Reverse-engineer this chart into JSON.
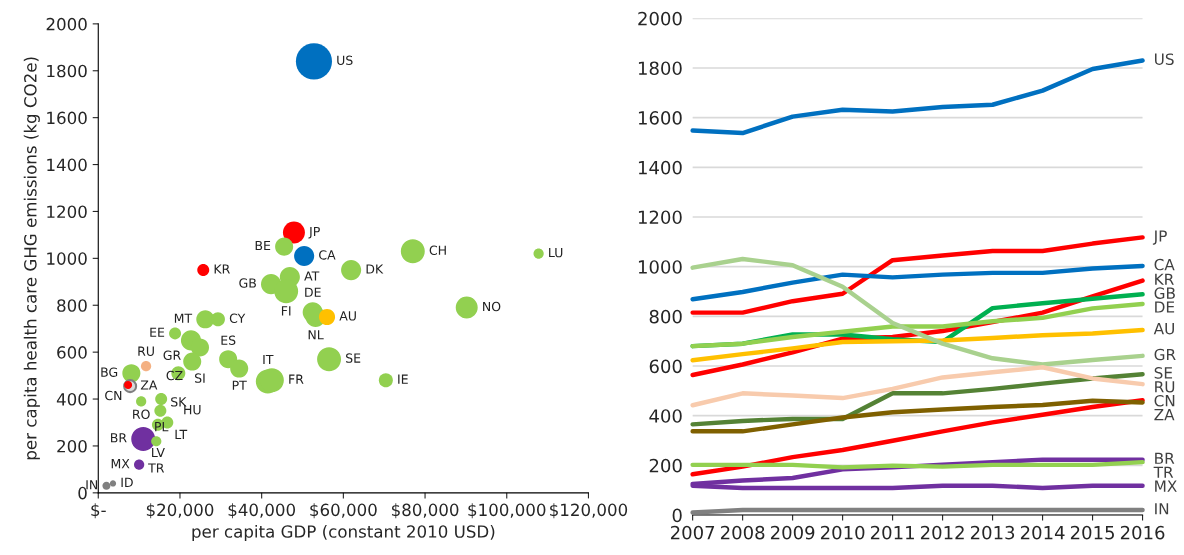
{
  "chart_data": [
    {
      "type": "bubble",
      "xlabel": "per capita GDP (constant 2010 USD)",
      "ylabel": "per capita health care GHG emissions (kg CO2e)",
      "x": [
        52800,
        47900,
        50400,
        45500,
        77000,
        107800,
        25700,
        61900,
        42300,
        46900,
        46000,
        52500,
        53200,
        56000,
        90200,
        26200,
        29300,
        18800,
        22700,
        24900,
        23000,
        31800,
        34500,
        41500,
        42500,
        56500,
        70400,
        8100,
        11700,
        19600,
        7800,
        7300,
        10500,
        15400,
        15200,
        16900,
        14600,
        11000,
        14200,
        10000,
        2000,
        3600
      ],
      "values": [
        1840,
        1110,
        1010,
        1050,
        1030,
        1020,
        950,
        950,
        890,
        920,
        860,
        770,
        750,
        750,
        790,
        740,
        740,
        680,
        650,
        620,
        560,
        570,
        530,
        475,
        480,
        570,
        480,
        510,
        540,
        510,
        455,
        460,
        390,
        400,
        350,
        300,
        290,
        230,
        220,
        120,
        30,
        40
      ],
      "sizes": [
        1,
        0.37,
        0.31,
        0.25,
        0.44,
        0.08,
        0.11,
        0.31,
        0.31,
        0.31,
        0.44,
        0.31,
        0.31,
        0.2,
        0.37,
        0.25,
        0.15,
        0.11,
        0.31,
        0.25,
        0.25,
        0.25,
        0.25,
        0.44,
        0.44,
        0.44,
        0.15,
        0.25,
        0.08,
        0.15,
        0.11,
        0.05,
        0.08,
        0.11,
        0.11,
        0.11,
        0.11,
        0.44,
        0.08,
        0.08,
        0.05,
        0.03
      ],
      "colors": [
        "#0070c0",
        "#ff0000",
        "#0070c0",
        "#92d050",
        "#92d050",
        "#92d050",
        "#ff0000",
        "#92d050",
        "#92d050",
        "#92d050",
        "#92d050",
        "#92d050",
        "#92d050",
        "#ffc000",
        "#92d050",
        "#92d050",
        "#92d050",
        "#92d050",
        "#92d050",
        "#92d050",
        "#92d050",
        "#92d050",
        "#92d050",
        "#92d050",
        "#92d050",
        "#92d050",
        "#92d050",
        "#92d050",
        "#f4b183",
        "#92d050",
        "#d9d9d9",
        "#ff0000",
        "#92d050",
        "#92d050",
        "#92d050",
        "#92d050",
        "#92d050",
        "#7030a0",
        "#92d050",
        "#7030a0",
        "#808080",
        "#808080"
      ],
      "value_labels": [
        "US",
        "JP",
        "CA",
        "BE",
        "CH",
        "LU",
        "KR",
        "DK",
        "GB",
        "AT",
        "FI",
        "DE",
        "NL",
        "AU",
        "NO",
        "MT",
        "CY",
        "EE",
        "GR",
        "SI",
        "CZ",
        "ES",
        "PT",
        "IT",
        "FR",
        "SE",
        "IE",
        "BG",
        "RU",
        "SK",
        "ZA",
        "CN",
        "RO",
        "PL",
        "HU",
        "LT",
        "LV",
        "BR",
        "TR",
        "MX",
        "IN",
        "ID"
      ],
      "xlim": [
        0,
        120000
      ],
      "xticks": [
        {
          "value": 0,
          "label": "$-"
        },
        {
          "value": 20000,
          "label": "$20,000"
        },
        {
          "value": 40000,
          "label": "$40,000"
        },
        {
          "value": 60000,
          "label": "$60,000"
        },
        {
          "value": 80000,
          "label": "$80,000"
        },
        {
          "value": 100000,
          "label": "$100,000"
        },
        {
          "value": 120000,
          "label": "$120,000"
        }
      ],
      "ylim": [
        0,
        2000
      ],
      "yticks": [
        0,
        200,
        400,
        600,
        800,
        1000,
        1200,
        1400,
        1600,
        1800,
        2000
      ]
    },
    {
      "type": "line",
      "categories": [
        "2007",
        "2008",
        "2009",
        "2010",
        "2011",
        "2012",
        "2013",
        "2014",
        "2015",
        "2016"
      ],
      "ylim": [
        0,
        2000
      ],
      "yticks": [
        0,
        200,
        400,
        600,
        800,
        1000,
        1200,
        1400,
        1600,
        1800,
        2000
      ],
      "grid": "y",
      "series": [
        {
          "name": "US",
          "color": "#0070c0",
          "values": [
            1548,
            1538,
            1604,
            1632,
            1625,
            1643,
            1652,
            1709,
            1796,
            1830
          ]
        },
        {
          "name": "JP",
          "color": "#ff0000",
          "values": [
            815,
            815,
            861,
            891,
            1026,
            1045,
            1063,
            1063,
            1093,
            1118
          ]
        },
        {
          "name": "CA",
          "color": "#0070c0",
          "values": [
            869,
            898,
            936,
            968,
            957,
            968,
            975,
            975,
            993,
            1003
          ]
        },
        {
          "name": "KR",
          "color": "#ff0000",
          "values": [
            564,
            606,
            655,
            710,
            717,
            741,
            777,
            815,
            880,
            944
          ]
        },
        {
          "name": "GB",
          "color": "#00b050",
          "values": [
            680,
            690,
            727,
            727,
            708,
            697,
            833,
            853,
            871,
            889
          ]
        },
        {
          "name": "DE",
          "color": "#92d050",
          "values": [
            680,
            690,
            717,
            738,
            759,
            759,
            780,
            794,
            832,
            850
          ]
        },
        {
          "name": "AU",
          "color": "#ffc000",
          "values": [
            623,
            648,
            671,
            697,
            700,
            703,
            713,
            724,
            731,
            745
          ]
        },
        {
          "name": "GR",
          "color": "#a9d18e",
          "values": [
            996,
            1031,
            1006,
            919,
            773,
            690,
            631,
            606,
            624,
            641
          ]
        },
        {
          "name": "SE",
          "color": "#548235",
          "values": [
            365,
            379,
            387,
            387,
            490,
            490,
            508,
            529,
            550,
            567
          ]
        },
        {
          "name": "RU",
          "color": "#f8cbad",
          "values": [
            442,
            490,
            481,
            471,
            508,
            554,
            575,
            595,
            550,
            527
          ]
        },
        {
          "name": "CN",
          "color": "#ff0000",
          "values": [
            164,
            195,
            233,
            262,
            299,
            337,
            373,
            404,
            435,
            462
          ]
        },
        {
          "name": "ZA",
          "color": "#7f6000",
          "values": [
            337,
            337,
            365,
            393,
            414,
            425,
            435,
            443,
            460,
            453
          ]
        },
        {
          "name": "BR",
          "color": "#7030a0",
          "values": [
            125,
            139,
            149,
            184,
            192,
            203,
            213,
            223,
            223,
            223
          ]
        },
        {
          "name": "TR",
          "color": "#92d050",
          "values": [
            202,
            202,
            202,
            192,
            199,
            195,
            202,
            202,
            202,
            213
          ]
        },
        {
          "name": "MX",
          "color": "#7030a0",
          "values": [
            118,
            109,
            109,
            109,
            109,
            118,
            118,
            109,
            118,
            118
          ]
        },
        {
          "name": "IN",
          "color": "#808080",
          "values": [
            10,
            20,
            20,
            20,
            20,
            20,
            20,
            20,
            20,
            20
          ]
        }
      ]
    }
  ]
}
